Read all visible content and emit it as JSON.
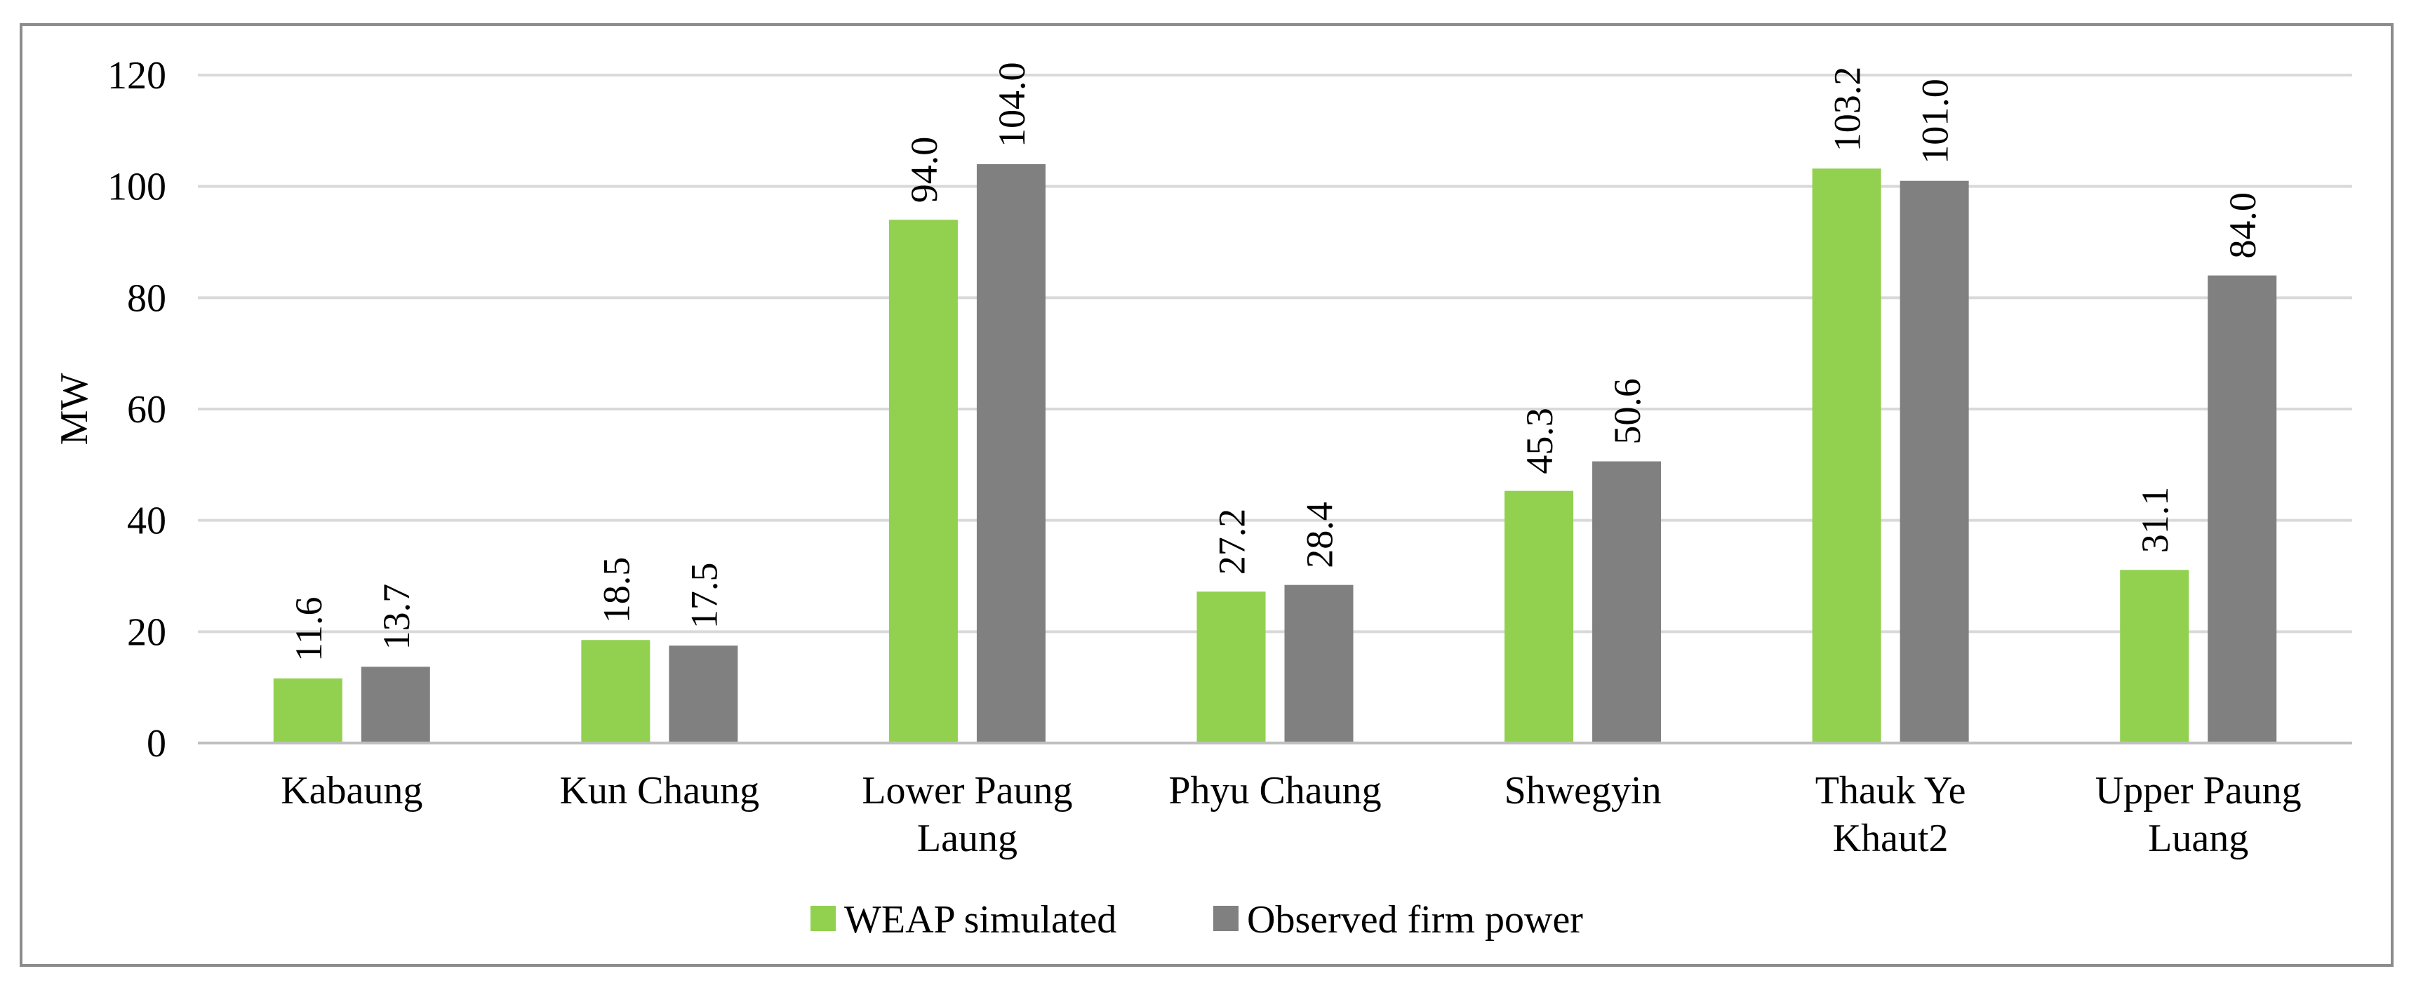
{
  "chart_data": {
    "type": "bar",
    "title": "",
    "xlabel": "",
    "ylabel": "MW",
    "ylim": [
      0,
      120
    ],
    "yticks": [
      0,
      20,
      40,
      60,
      80,
      100,
      120
    ],
    "grid": true,
    "legend_position": "bottom",
    "categories": [
      [
        "Kabaung"
      ],
      [
        "Kun Chaung"
      ],
      [
        "Lower Paung",
        "Laung"
      ],
      [
        "Phyu Chaung"
      ],
      [
        "Shwegyin"
      ],
      [
        "Thauk Ye",
        "Khaut2"
      ],
      [
        "Upper Paung",
        "Luang"
      ]
    ],
    "series": [
      {
        "name": "WEAP simulated",
        "color": "#92d050",
        "values": [
          11.6,
          18.5,
          94.0,
          27.2,
          45.3,
          103.2,
          31.1
        ],
        "labels": [
          "11.6",
          "18.5",
          "94.0",
          "27.2",
          "45.3",
          "103.2",
          "31.1"
        ]
      },
      {
        "name": "Observed firm power",
        "color": "#808080",
        "values": [
          13.7,
          17.5,
          104.0,
          28.4,
          50.6,
          101.0,
          84.0
        ],
        "labels": [
          "13.7",
          "17.5",
          "104.0",
          "28.4",
          "50.6",
          "101.0",
          "84.0"
        ]
      }
    ],
    "colors": {
      "gridline": "#d9d9d9",
      "axis": "#bfbfbf",
      "frame": "#8c8c8c"
    }
  }
}
